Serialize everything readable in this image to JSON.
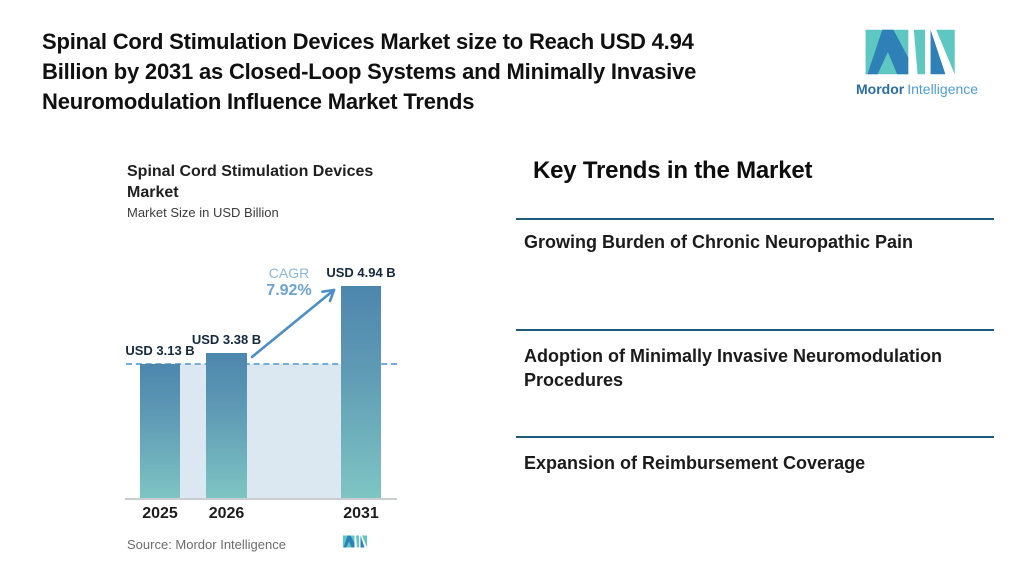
{
  "colors": {
    "teal": "#5ec7c2",
    "blue": "#2e80b6",
    "brand_text_dark": "#2b6da3",
    "brand_text_light": "#4d9fd2",
    "bar_top": "#4d86ad",
    "bar_bottom": "#7ec5c3",
    "shade": "#dbe7f1",
    "dashed": "#78aed6",
    "arrow": "#4c8fc4",
    "rule": "#1d5b7c",
    "cagr_label": "#8ab7da",
    "cagr_value": "#6ba3d1",
    "baseline": "#c9ccd1"
  },
  "header": {
    "headline_lines": [
      "Spinal Cord Stimulation Devices Market size to Reach USD 4.94",
      "Billion by 2031 as Closed-Loop Systems and Minimally Invasive",
      "Neuromodulation Influence Market Trends"
    ]
  },
  "logo": {
    "name_bold": "Mordor",
    "name_light": "Intelligence"
  },
  "chart_data": {
    "type": "bar",
    "title": "Spinal Cord Stimulation Devices Market",
    "title_lines": [
      "Spinal Cord Stimulation Devices",
      "Market"
    ],
    "subtitle": "Market Size in USD Billion",
    "categories": [
      "2025",
      "2026",
      "2031"
    ],
    "values": [
      3.13,
      3.38,
      4.94
    ],
    "value_labels": [
      "USD 3.13 B",
      "USD 3.38 B",
      "USD 4.94 B"
    ],
    "ylabel": "Market Size in USD Billion",
    "ylim": [
      0,
      5.2
    ],
    "cagr": {
      "label": "CAGR",
      "value": "7.92%"
    },
    "annotations": [
      "dashed reference line at 2025 level",
      "growth arrow from 2026 bar to 2031 bar"
    ],
    "source": "Source: Mordor Intelligence",
    "grid": false,
    "legend": false
  },
  "key_trends": {
    "title": "Key Trends in the Market",
    "items": [
      "Growing Burden of Chronic Neuropathic Pain",
      "Adoption of Minimally Invasive Neuromodulation Procedures",
      "Expansion of Reimbursement Coverage"
    ]
  }
}
